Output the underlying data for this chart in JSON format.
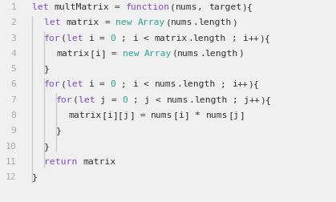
{
  "background_color": "#f0f0f0",
  "line_number_color": "#aaaaaa",
  "indent_line_color": "#cccccc",
  "figsize": [
    4.19,
    2.53
  ],
  "dpi": 100,
  "lines": [
    {
      "num": "1",
      "indent": 0,
      "tokens": [
        {
          "text": "let ",
          "color": "#7c4dbd"
        },
        {
          "text": "multMatrix",
          "color": "#333333"
        },
        {
          "text": " = ",
          "color": "#333333"
        },
        {
          "text": "function",
          "color": "#7c4dbd"
        },
        {
          "text": "(",
          "color": "#333333"
        },
        {
          "text": "nums",
          "color": "#333333"
        },
        {
          "text": ", ",
          "color": "#333333"
        },
        {
          "text": "target",
          "color": "#333333"
        },
        {
          "text": "){",
          "color": "#333333"
        }
      ]
    },
    {
      "num": "2",
      "indent": 1,
      "tokens": [
        {
          "text": "let ",
          "color": "#7c4dbd"
        },
        {
          "text": "matrix",
          "color": "#333333"
        },
        {
          "text": " = ",
          "color": "#333333"
        },
        {
          "text": "new ",
          "color": "#2aa198"
        },
        {
          "text": "Array",
          "color": "#2aa198"
        },
        {
          "text": "(",
          "color": "#333333"
        },
        {
          "text": "nums",
          "color": "#333333"
        },
        {
          "text": ".",
          "color": "#333333"
        },
        {
          "text": "length",
          "color": "#333333"
        },
        {
          "text": ")",
          "color": "#333333"
        }
      ]
    },
    {
      "num": "3",
      "indent": 1,
      "tokens": [
        {
          "text": "for",
          "color": "#7c4dbd"
        },
        {
          "text": "(",
          "color": "#333333"
        },
        {
          "text": "let ",
          "color": "#7c4dbd"
        },
        {
          "text": "i",
          "color": "#333333"
        },
        {
          "text": " = ",
          "color": "#333333"
        },
        {
          "text": "0",
          "color": "#2aa198"
        },
        {
          "text": " ; ",
          "color": "#333333"
        },
        {
          "text": "i",
          "color": "#333333"
        },
        {
          "text": " < ",
          "color": "#333333"
        },
        {
          "text": "matrix",
          "color": "#333333"
        },
        {
          "text": ".",
          "color": "#333333"
        },
        {
          "text": "length",
          "color": "#333333"
        },
        {
          "text": " ; ",
          "color": "#333333"
        },
        {
          "text": "i",
          "color": "#333333"
        },
        {
          "text": "++",
          "color": "#333333"
        },
        {
          "text": "){",
          "color": "#333333"
        }
      ]
    },
    {
      "num": "4",
      "indent": 2,
      "tokens": [
        {
          "text": "matrix",
          "color": "#333333"
        },
        {
          "text": "[",
          "color": "#333333"
        },
        {
          "text": "i",
          "color": "#333333"
        },
        {
          "text": "]",
          "color": "#333333"
        },
        {
          "text": " = ",
          "color": "#333333"
        },
        {
          "text": "new ",
          "color": "#2aa198"
        },
        {
          "text": "Array",
          "color": "#2aa198"
        },
        {
          "text": "(",
          "color": "#333333"
        },
        {
          "text": "nums",
          "color": "#333333"
        },
        {
          "text": ".",
          "color": "#333333"
        },
        {
          "text": "length",
          "color": "#333333"
        },
        {
          "text": ")",
          "color": "#333333"
        }
      ]
    },
    {
      "num": "5",
      "indent": 1,
      "tokens": [
        {
          "text": "}",
          "color": "#333333"
        }
      ]
    },
    {
      "num": "6",
      "indent": 1,
      "tokens": [
        {
          "text": "for",
          "color": "#7c4dbd"
        },
        {
          "text": "(",
          "color": "#333333"
        },
        {
          "text": "let ",
          "color": "#7c4dbd"
        },
        {
          "text": "i",
          "color": "#333333"
        },
        {
          "text": " = ",
          "color": "#333333"
        },
        {
          "text": "0",
          "color": "#2aa198"
        },
        {
          "text": " ; ",
          "color": "#333333"
        },
        {
          "text": "i",
          "color": "#333333"
        },
        {
          "text": " < ",
          "color": "#333333"
        },
        {
          "text": "nums",
          "color": "#333333"
        },
        {
          "text": ".",
          "color": "#333333"
        },
        {
          "text": "length",
          "color": "#333333"
        },
        {
          "text": " ; ",
          "color": "#333333"
        },
        {
          "text": "i",
          "color": "#333333"
        },
        {
          "text": "++",
          "color": "#333333"
        },
        {
          "text": "){",
          "color": "#333333"
        }
      ]
    },
    {
      "num": "7",
      "indent": 2,
      "tokens": [
        {
          "text": "for",
          "color": "#7c4dbd"
        },
        {
          "text": "(",
          "color": "#333333"
        },
        {
          "text": "let ",
          "color": "#7c4dbd"
        },
        {
          "text": "j",
          "color": "#333333"
        },
        {
          "text": " = ",
          "color": "#333333"
        },
        {
          "text": "0",
          "color": "#2aa198"
        },
        {
          "text": " ; ",
          "color": "#333333"
        },
        {
          "text": "j",
          "color": "#333333"
        },
        {
          "text": " < ",
          "color": "#333333"
        },
        {
          "text": "nums",
          "color": "#333333"
        },
        {
          "text": ".",
          "color": "#333333"
        },
        {
          "text": "length",
          "color": "#333333"
        },
        {
          "text": " ; ",
          "color": "#333333"
        },
        {
          "text": "j",
          "color": "#333333"
        },
        {
          "text": "++",
          "color": "#333333"
        },
        {
          "text": "){",
          "color": "#333333"
        }
      ]
    },
    {
      "num": "8",
      "indent": 3,
      "tokens": [
        {
          "text": "matrix",
          "color": "#333333"
        },
        {
          "text": "[",
          "color": "#333333"
        },
        {
          "text": "i",
          "color": "#333333"
        },
        {
          "text": "][",
          "color": "#333333"
        },
        {
          "text": "j",
          "color": "#333333"
        },
        {
          "text": "]",
          "color": "#333333"
        },
        {
          "text": " = ",
          "color": "#333333"
        },
        {
          "text": "nums",
          "color": "#333333"
        },
        {
          "text": "[",
          "color": "#333333"
        },
        {
          "text": "i",
          "color": "#333333"
        },
        {
          "text": "]",
          "color": "#333333"
        },
        {
          "text": " * ",
          "color": "#333333"
        },
        {
          "text": "nums",
          "color": "#333333"
        },
        {
          "text": "[",
          "color": "#333333"
        },
        {
          "text": "j",
          "color": "#333333"
        },
        {
          "text": "]",
          "color": "#333333"
        }
      ]
    },
    {
      "num": "9",
      "indent": 2,
      "tokens": [
        {
          "text": "}",
          "color": "#333333"
        }
      ]
    },
    {
      "num": "10",
      "indent": 1,
      "tokens": [
        {
          "text": "}",
          "color": "#333333"
        }
      ]
    },
    {
      "num": "11",
      "indent": 1,
      "tokens": [
        {
          "text": "return ",
          "color": "#7c4dbd"
        },
        {
          "text": "matrix",
          "color": "#333333"
        }
      ]
    },
    {
      "num": "12",
      "indent": 0,
      "tokens": [
        {
          "text": "}",
          "color": "#333333"
        }
      ]
    }
  ]
}
